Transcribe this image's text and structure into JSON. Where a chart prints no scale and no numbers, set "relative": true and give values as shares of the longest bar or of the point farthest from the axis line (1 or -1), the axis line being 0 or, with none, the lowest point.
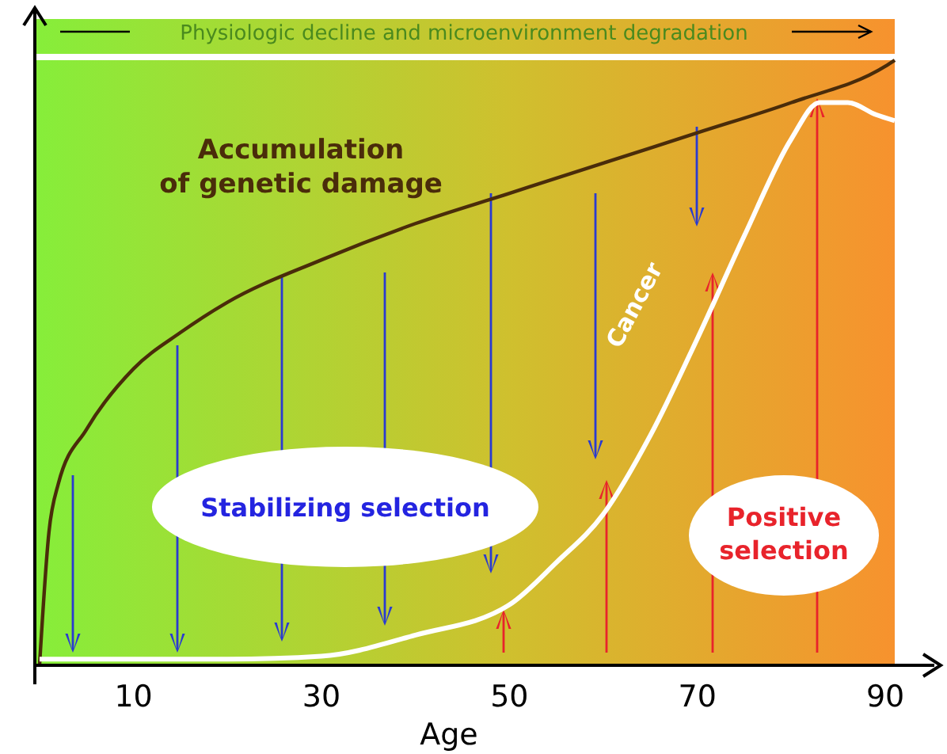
{
  "chart_data": {
    "type": "line",
    "relative": true,
    "xlabel": "Age",
    "xlim": [
      -0.5,
      91
    ],
    "xticks": [
      10,
      30,
      50,
      70,
      90
    ],
    "annotations": [
      "Physiologic decline and microenvironment degradation",
      "Stabilizing selection",
      "Positive selection"
    ],
    "series": [
      {
        "name": "Accumulation of genetic damage",
        "color": "#4a2c0a",
        "x": [
          0,
          1,
          2,
          5,
          10,
          15,
          20,
          30,
          40,
          50,
          60,
          70,
          80,
          90,
          91
        ],
        "values": [
          0,
          0.22,
          0.3,
          0.39,
          0.49,
          0.55,
          0.6,
          0.67,
          0.73,
          0.78,
          0.83,
          0.88,
          0.93,
          0.99,
          1
        ]
      },
      {
        "name": "Cancer",
        "color": "#ffffff",
        "x": [
          0,
          10,
          20,
          30,
          40,
          50,
          55,
          60,
          65,
          70,
          75,
          80,
          83,
          86,
          89,
          91
        ],
        "values": [
          0.01,
          0.01,
          0.01,
          0.015,
          0.05,
          0.1,
          0.17,
          0.25,
          0.38,
          0.54,
          0.71,
          0.87,
          0.93,
          0.93,
          0.91,
          0.9
        ]
      }
    ]
  }
}
